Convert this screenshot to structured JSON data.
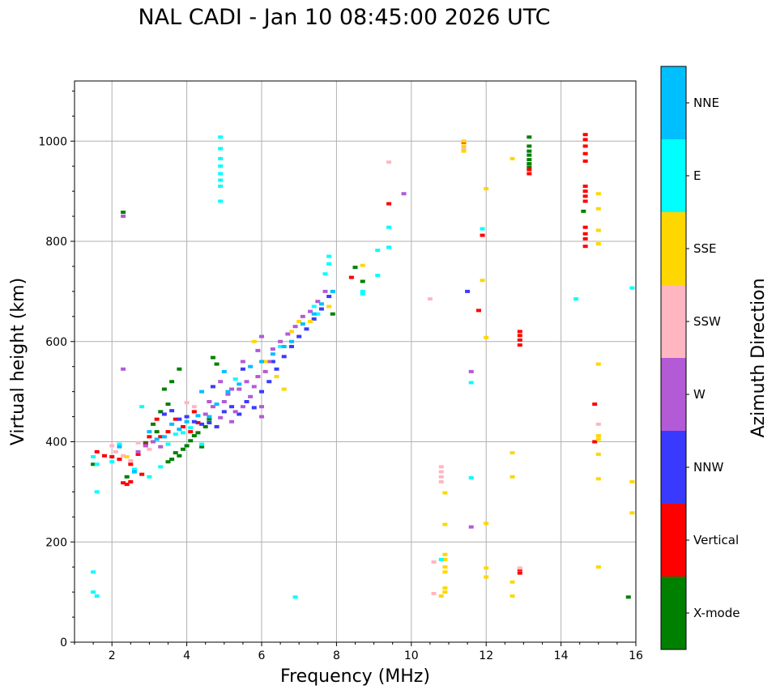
{
  "chart_data": {
    "type": "scatter",
    "title": "NAL CADI - Jan 10 08:45:00 2026 UTC",
    "xlabel": "Frequency (MHz)",
    "ylabel": "Virtual height (km)",
    "xlim": [
      1,
      16
    ],
    "ylim": [
      0,
      1120
    ],
    "xticks": [
      2,
      4,
      6,
      8,
      10,
      12,
      14,
      16
    ],
    "yticks": [
      0,
      200,
      400,
      600,
      800,
      1000
    ],
    "grid": true,
    "colorbar": {
      "label": "Azimuth Direction",
      "categories": [
        "X-mode",
        "Vertical",
        "NNW",
        "W",
        "SSW",
        "SSE",
        "E",
        "NNE"
      ],
      "colors": [
        "#008000",
        "#ff0000",
        "#3a3aff",
        "#b35ad6",
        "#ffb6c1",
        "#ffd700",
        "#00ffff",
        "#00bfff"
      ]
    },
    "series": [
      {
        "name": "X-mode",
        "points": [
          [
            1.5,
            355
          ],
          [
            2.4,
            330
          ],
          [
            2.9,
            398
          ],
          [
            3.1,
            435
          ],
          [
            3.3,
            460
          ],
          [
            3.5,
            475
          ],
          [
            3.5,
            360
          ],
          [
            3.6,
            365
          ],
          [
            3.7,
            378
          ],
          [
            3.8,
            372
          ],
          [
            3.9,
            385
          ],
          [
            4.0,
            392
          ],
          [
            4.1,
            402
          ],
          [
            4.2,
            412
          ],
          [
            4.3,
            418
          ],
          [
            4.4,
            390
          ],
          [
            4.5,
            430
          ],
          [
            4.6,
            445
          ],
          [
            3.2,
            420
          ],
          [
            3.4,
            505
          ],
          [
            3.6,
            520
          ],
          [
            3.8,
            545
          ],
          [
            4.7,
            568
          ],
          [
            4.8,
            555
          ],
          [
            2.3,
            858
          ],
          [
            8.5,
            748
          ],
          [
            8.7,
            720
          ],
          [
            7.9,
            655
          ],
          [
            13.15,
            1008
          ],
          [
            13.15,
            990
          ],
          [
            13.15,
            980
          ],
          [
            13.15,
            972
          ],
          [
            13.15,
            963
          ],
          [
            13.15,
            955
          ],
          [
            13.15,
            948
          ],
          [
            14.6,
            860
          ],
          [
            15.8,
            90
          ]
        ]
      },
      {
        "name": "Vertical",
        "points": [
          [
            1.6,
            380
          ],
          [
            1.8,
            372
          ],
          [
            2.0,
            370
          ],
          [
            2.2,
            365
          ],
          [
            2.5,
            355
          ],
          [
            2.7,
            375
          ],
          [
            2.9,
            395
          ],
          [
            3.0,
            410
          ],
          [
            3.2,
            445
          ],
          [
            2.3,
            318
          ],
          [
            2.4,
            315
          ],
          [
            2.5,
            320
          ],
          [
            2.8,
            335
          ],
          [
            3.3,
            410
          ],
          [
            3.5,
            420
          ],
          [
            3.7,
            445
          ],
          [
            3.9,
            430
          ],
          [
            4.1,
            420
          ],
          [
            4.3,
            438
          ],
          [
            4.2,
            460
          ],
          [
            8.4,
            728
          ],
          [
            9.4,
            875
          ],
          [
            11.4,
            998
          ],
          [
            11.8,
            662
          ],
          [
            11.9,
            812
          ],
          [
            12.9,
            620
          ],
          [
            12.9,
            612
          ],
          [
            12.9,
            603
          ],
          [
            12.9,
            593
          ],
          [
            12.9,
            145
          ],
          [
            12.9,
            138
          ],
          [
            13.15,
            943
          ],
          [
            13.15,
            935
          ],
          [
            14.65,
            1013
          ],
          [
            14.65,
            1003
          ],
          [
            14.65,
            990
          ],
          [
            14.65,
            975
          ],
          [
            14.65,
            960
          ],
          [
            14.65,
            910
          ],
          [
            14.65,
            900
          ],
          [
            14.65,
            890
          ],
          [
            14.65,
            880
          ],
          [
            14.65,
            828
          ],
          [
            14.65,
            815
          ],
          [
            14.65,
            805
          ],
          [
            14.65,
            790
          ],
          [
            14.9,
            475
          ],
          [
            14.9,
            400
          ]
        ]
      },
      {
        "name": "NNW",
        "points": [
          [
            4.4,
            435
          ],
          [
            4.6,
            438
          ],
          [
            4.8,
            430
          ],
          [
            5.0,
            460
          ],
          [
            5.2,
            470
          ],
          [
            5.4,
            455
          ],
          [
            5.6,
            480
          ],
          [
            5.8,
            468
          ],
          [
            6.0,
            500
          ],
          [
            6.2,
            520
          ],
          [
            6.4,
            545
          ],
          [
            6.6,
            570
          ],
          [
            6.8,
            590
          ],
          [
            7.0,
            610
          ],
          [
            7.2,
            625
          ],
          [
            7.4,
            645
          ],
          [
            7.6,
            665
          ],
          [
            7.8,
            690
          ],
          [
            3.4,
            455
          ],
          [
            3.6,
            462
          ],
          [
            3.8,
            445
          ],
          [
            4.0,
            450
          ],
          [
            4.2,
            440
          ],
          [
            11.5,
            700
          ],
          [
            4.7,
            510
          ],
          [
            5.5,
            545
          ],
          [
            6.3,
            560
          ]
        ]
      },
      {
        "name": "W",
        "points": [
          [
            2.7,
            380
          ],
          [
            2.9,
            392
          ],
          [
            3.1,
            400
          ],
          [
            3.3,
            390
          ],
          [
            4.5,
            455
          ],
          [
            4.7,
            470
          ],
          [
            4.9,
            448
          ],
          [
            5.0,
            480
          ],
          [
            5.1,
            495
          ],
          [
            5.2,
            440
          ],
          [
            5.3,
            460
          ],
          [
            5.4,
            505
          ],
          [
            5.5,
            470
          ],
          [
            5.6,
            520
          ],
          [
            5.7,
            490
          ],
          [
            5.8,
            510
          ],
          [
            5.9,
            530
          ],
          [
            6.0,
            470
          ],
          [
            6.1,
            540
          ],
          [
            6.2,
            560
          ],
          [
            6.3,
            585
          ],
          [
            6.5,
            600
          ],
          [
            6.7,
            615
          ],
          [
            6.9,
            630
          ],
          [
            7.1,
            650
          ],
          [
            7.3,
            660
          ],
          [
            7.5,
            680
          ],
          [
            7.7,
            700
          ],
          [
            6.0,
            450
          ],
          [
            5.5,
            560
          ],
          [
            5.2,
            505
          ],
          [
            4.6,
            480
          ],
          [
            4.9,
            520
          ],
          [
            2.3,
            545
          ],
          [
            2.3,
            850
          ],
          [
            9.8,
            895
          ],
          [
            11.6,
            540
          ],
          [
            11.6,
            230
          ],
          [
            6.0,
            610
          ],
          [
            5.9,
            582
          ]
        ]
      },
      {
        "name": "SSW",
        "points": [
          [
            2.0,
            392
          ],
          [
            2.1,
            380
          ],
          [
            2.3,
            372
          ],
          [
            2.5,
            362
          ],
          [
            2.7,
            398
          ],
          [
            3.0,
            385
          ],
          [
            3.5,
            395
          ],
          [
            4.0,
            478
          ],
          [
            4.2,
            470
          ],
          [
            9.4,
            958
          ],
          [
            10.5,
            685
          ],
          [
            10.8,
            350
          ],
          [
            10.8,
            340
          ],
          [
            10.8,
            330
          ],
          [
            10.8,
            320
          ],
          [
            10.6,
            160
          ],
          [
            10.6,
            97
          ],
          [
            11.4,
            985
          ],
          [
            12.9,
            148
          ],
          [
            15.0,
            435
          ]
        ]
      },
      {
        "name": "SSE",
        "points": [
          [
            5.8,
            600
          ],
          [
            6.1,
            560
          ],
          [
            6.4,
            530
          ],
          [
            6.6,
            505
          ],
          [
            6.8,
            620
          ],
          [
            7.0,
            640
          ],
          [
            7.3,
            640
          ],
          [
            7.8,
            670
          ],
          [
            2.4,
            370
          ],
          [
            8.7,
            752
          ],
          [
            10.9,
            298
          ],
          [
            10.9,
            235
          ],
          [
            10.9,
            175
          ],
          [
            10.9,
            165
          ],
          [
            10.9,
            150
          ],
          [
            10.9,
            140
          ],
          [
            10.9,
            108
          ],
          [
            10.9,
            100
          ],
          [
            10.8,
            92
          ],
          [
            11.4,
            1000
          ],
          [
            11.4,
            990
          ],
          [
            11.4,
            980
          ],
          [
            11.9,
            722
          ],
          [
            12.0,
            905
          ],
          [
            12.0,
            608
          ],
          [
            12.0,
            237
          ],
          [
            12.0,
            148
          ],
          [
            12.0,
            130
          ],
          [
            12.7,
            965
          ],
          [
            12.7,
            378
          ],
          [
            12.7,
            330
          ],
          [
            12.7,
            120
          ],
          [
            12.7,
            92
          ],
          [
            15.0,
            895
          ],
          [
            15.0,
            865
          ],
          [
            15.0,
            822
          ],
          [
            15.0,
            795
          ],
          [
            15.0,
            555
          ],
          [
            15.0,
            412
          ],
          [
            15.0,
            405
          ],
          [
            15.0,
            375
          ],
          [
            15.0,
            326
          ],
          [
            15.0,
            150
          ],
          [
            15.9,
            320
          ],
          [
            15.9,
            258
          ]
        ]
      },
      {
        "name": "E",
        "points": [
          [
            1.5,
            370
          ],
          [
            1.6,
            355
          ],
          [
            1.5,
            140
          ],
          [
            1.5,
            100
          ],
          [
            1.6,
            92
          ],
          [
            1.6,
            300
          ],
          [
            2.0,
            360
          ],
          [
            2.2,
            395
          ],
          [
            2.6,
            345
          ],
          [
            3.0,
            330
          ],
          [
            3.3,
            350
          ],
          [
            3.5,
            395
          ],
          [
            3.7,
            415
          ],
          [
            3.9,
            418
          ],
          [
            4.1,
            428
          ],
          [
            4.4,
            395
          ],
          [
            4.9,
            1008
          ],
          [
            4.9,
            985
          ],
          [
            4.9,
            965
          ],
          [
            4.9,
            950
          ],
          [
            4.9,
            935
          ],
          [
            4.9,
            922
          ],
          [
            4.9,
            910
          ],
          [
            4.9,
            880
          ],
          [
            6.9,
            90
          ],
          [
            7.5,
            655
          ],
          [
            7.7,
            735
          ],
          [
            7.8,
            770
          ],
          [
            7.8,
            755
          ],
          [
            8.7,
            700
          ],
          [
            8.7,
            695
          ],
          [
            9.1,
            782
          ],
          [
            9.1,
            732
          ],
          [
            9.4,
            828
          ],
          [
            9.4,
            788
          ],
          [
            10.8,
            165
          ],
          [
            11.6,
            518
          ],
          [
            11.6,
            328
          ],
          [
            11.9,
            825
          ],
          [
            14.4,
            685
          ],
          [
            15.9,
            707
          ],
          [
            6.5,
            590
          ],
          [
            7.4,
            670
          ],
          [
            5.3,
            525
          ],
          [
            2.8,
            470
          ]
        ]
      },
      {
        "name": "NNE",
        "points": [
          [
            3.0,
            420
          ],
          [
            3.2,
            405
          ],
          [
            3.4,
            410
          ],
          [
            3.6,
            435
          ],
          [
            3.8,
            425
          ],
          [
            4.0,
            440
          ],
          [
            4.3,
            452
          ],
          [
            4.6,
            450
          ],
          [
            4.8,
            475
          ],
          [
            5.1,
            500
          ],
          [
            5.4,
            515
          ],
          [
            5.7,
            550
          ],
          [
            6.0,
            560
          ],
          [
            6.3,
            575
          ],
          [
            6.6,
            590
          ],
          [
            6.8,
            600
          ],
          [
            7.1,
            635
          ],
          [
            7.4,
            655
          ],
          [
            7.6,
            675
          ],
          [
            7.9,
            700
          ],
          [
            2.2,
            390
          ],
          [
            2.6,
            340
          ],
          [
            4.4,
            500
          ],
          [
            5.0,
            540
          ]
        ]
      }
    ]
  }
}
